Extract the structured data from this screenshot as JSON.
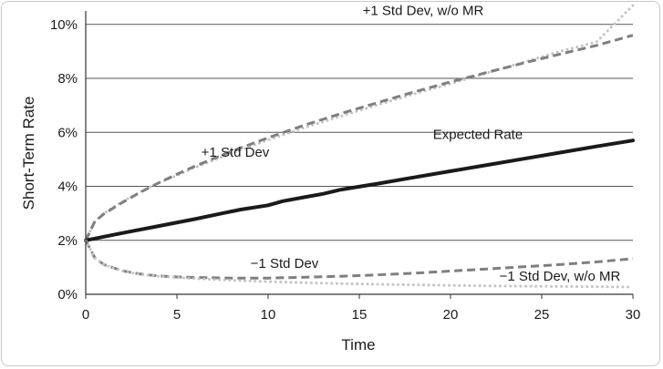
{
  "chart_data": {
    "type": "line",
    "title": "",
    "xlabel": "Time",
    "ylabel": "Short-Term Rate",
    "xlim": [
      0,
      30
    ],
    "ylim": [
      0,
      10.5
    ],
    "x_ticks": [
      0,
      5,
      10,
      15,
      20,
      25,
      30
    ],
    "x_tick_labels": [
      "0",
      "5",
      "10",
      "15",
      "20",
      "25",
      "30"
    ],
    "y_ticks": [
      0,
      2,
      4,
      6,
      8,
      10
    ],
    "y_tick_labels": [
      "0%",
      "2%",
      "4%",
      "6%",
      "8%",
      "10%"
    ],
    "grid": "horizontal",
    "series": [
      {
        "name": "+1 Std Dev, w/o MR",
        "style": "dotted",
        "color": "#c4c4c4",
        "width": 3,
        "x": [
          0,
          0.5,
          1,
          2,
          3,
          4,
          5,
          6,
          8,
          10,
          12,
          14,
          16,
          18,
          20,
          22,
          24,
          26,
          28,
          30
        ],
        "y": [
          2.0,
          2.7,
          3.0,
          3.43,
          3.8,
          4.13,
          4.4,
          4.7,
          5.23,
          5.72,
          6.18,
          6.6,
          7.02,
          7.42,
          7.8,
          8.2,
          8.6,
          9.0,
          9.35,
          10.7
        ]
      },
      {
        "name": "+1 Std Dev",
        "style": "dashed",
        "color": "#7f7f7f",
        "width": 3,
        "x": [
          0,
          0.5,
          1,
          2,
          3,
          4,
          5,
          6,
          8,
          10,
          12,
          14,
          16,
          18,
          20,
          22,
          24,
          26,
          28,
          30
        ],
        "y": [
          2.0,
          2.7,
          2.98,
          3.4,
          3.78,
          4.13,
          4.45,
          4.75,
          5.3,
          5.8,
          6.27,
          6.7,
          7.1,
          7.5,
          7.87,
          8.22,
          8.57,
          8.9,
          9.22,
          9.6
        ]
      },
      {
        "name": "Expected Rate",
        "style": "solid",
        "color": "#1a1a1a",
        "width": 4,
        "x": [
          0,
          2,
          4,
          6,
          7.5,
          8.5,
          10,
          10.8,
          12,
          13,
          14,
          16,
          18,
          20,
          22,
          24,
          26,
          28,
          30
        ],
        "y": [
          2.0,
          2.27,
          2.53,
          2.79,
          3.0,
          3.14,
          3.3,
          3.45,
          3.6,
          3.72,
          3.88,
          4.1,
          4.33,
          4.56,
          4.79,
          5.02,
          5.25,
          5.48,
          5.7
        ]
      },
      {
        "name": "−1 Std Dev",
        "style": "dashed",
        "color": "#7f7f7f",
        "width": 3,
        "x": [
          0,
          0.5,
          1,
          2,
          3,
          4,
          5,
          6,
          8,
          10,
          12,
          14,
          16,
          18,
          20,
          22,
          24,
          26,
          28,
          30
        ],
        "y": [
          2.0,
          1.35,
          1.1,
          0.87,
          0.75,
          0.68,
          0.64,
          0.62,
          0.6,
          0.6,
          0.63,
          0.67,
          0.72,
          0.78,
          0.86,
          0.94,
          1.02,
          1.1,
          1.2,
          1.32
        ]
      },
      {
        "name": "−1 Std Dev, w/o MR",
        "style": "dotted",
        "color": "#c4c4c4",
        "width": 3,
        "x": [
          0,
          0.5,
          1,
          2,
          3,
          4,
          5,
          6,
          8,
          10,
          12,
          14,
          16,
          18,
          20,
          22,
          24,
          26,
          28,
          30
        ],
        "y": [
          2.0,
          1.35,
          1.1,
          0.86,
          0.74,
          0.67,
          0.62,
          0.58,
          0.52,
          0.47,
          0.43,
          0.4,
          0.37,
          0.35,
          0.33,
          0.31,
          0.3,
          0.29,
          0.28,
          0.27
        ]
      }
    ],
    "annotations": [
      {
        "text": "+1 Std Dev, w/o MR",
        "x": 18.5,
        "y": 10.35
      },
      {
        "text": "+1 Std Dev",
        "x": 8.2,
        "y": 5.1
      },
      {
        "text": "Expected Rate",
        "x": 21.5,
        "y": 5.75
      },
      {
        "text": "−1 Std Dev",
        "x": 10.9,
        "y": 0.98
      },
      {
        "text": "−1 Std Dev, w/o MR",
        "x": 26.0,
        "y": 0.5
      }
    ]
  }
}
